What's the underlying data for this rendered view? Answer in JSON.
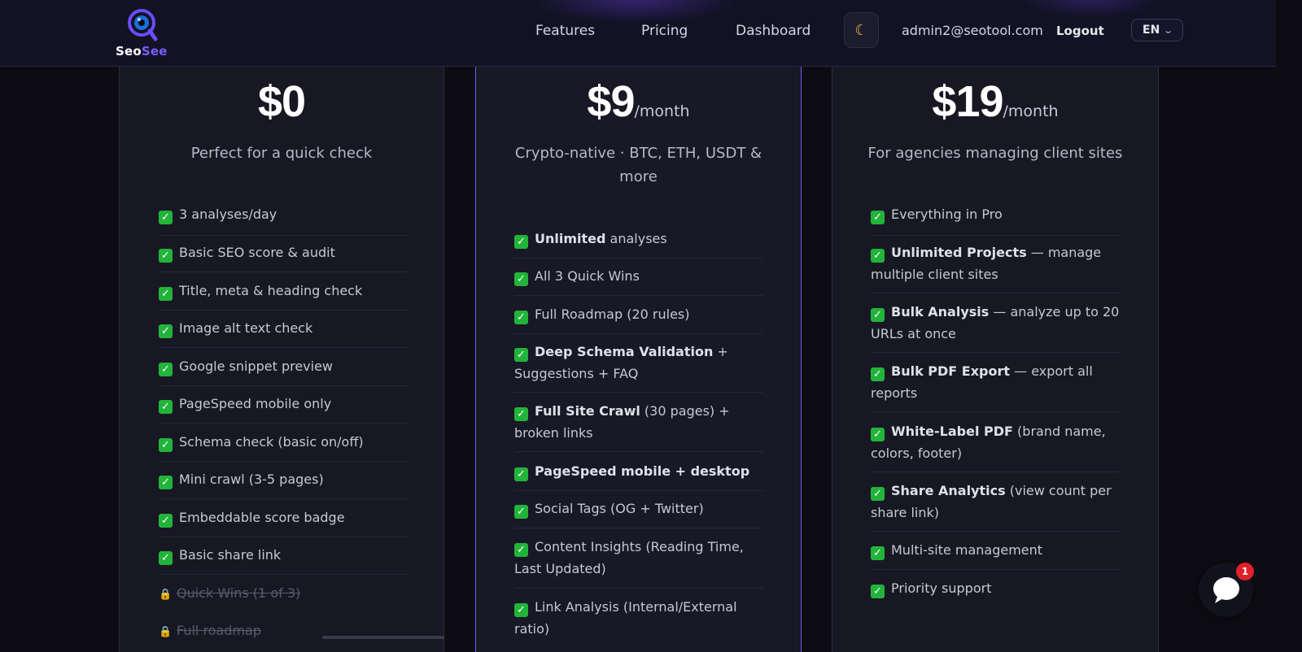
{
  "nav": {
    "logo_text_a": "Seo",
    "logo_text_b": "See",
    "links": [
      "Features",
      "Pricing",
      "Dashboard"
    ],
    "theme_icon": "moon-icon",
    "email": "admin2@seotool.com",
    "logout": "Logout",
    "lang": "EN"
  },
  "plans": [
    {
      "price": "$0",
      "period": "",
      "description": "Perfect for a quick check",
      "features": [
        {
          "bold": "",
          "text": "3 analyses/day"
        },
        {
          "bold": "",
          "text": "Basic SEO score & audit"
        },
        {
          "bold": "",
          "text": "Title, meta & heading check"
        },
        {
          "bold": "",
          "text": "Image alt text check"
        },
        {
          "bold": "",
          "text": "Google snippet preview"
        },
        {
          "bold": "",
          "text": "PageSpeed mobile only"
        },
        {
          "bold": "",
          "text": "Schema check (basic on/off)"
        },
        {
          "bold": "",
          "text": "Mini crawl (3-5 pages)"
        },
        {
          "bold": "",
          "text": "Embeddable score badge"
        },
        {
          "bold": "",
          "text": "Basic share link"
        }
      ],
      "locked": [
        "Quick Wins (1 of 3)",
        "Full roadmap"
      ]
    },
    {
      "price": "$9",
      "period": "/month",
      "description": "Crypto-native · BTC, ETH, USDT & more",
      "features": [
        {
          "bold": "Unlimited",
          "text": " analyses"
        },
        {
          "bold": "",
          "text": "All 3 Quick Wins"
        },
        {
          "bold": "",
          "text": "Full Roadmap (20 rules)"
        },
        {
          "bold": "Deep Schema Validation",
          "text": " + Suggestions + FAQ"
        },
        {
          "bold": "Full Site Crawl",
          "text": " (30 pages) + broken links"
        },
        {
          "bold": "PageSpeed mobile + desktop",
          "text": ""
        },
        {
          "bold": "",
          "text": "Social Tags (OG + Twitter)"
        },
        {
          "bold": "",
          "text": "Content Insights (Reading Time, Last Updated)"
        },
        {
          "bold": "",
          "text": "Link Analysis (Internal/External ratio)"
        }
      ]
    },
    {
      "price": "$19",
      "period": "/month",
      "description": "For agencies managing client sites",
      "features": [
        {
          "bold": "",
          "text": "Everything in Pro"
        },
        {
          "bold": "Unlimited Projects",
          "text": " — manage multiple client sites"
        },
        {
          "bold": "Bulk Analysis",
          "text": " — analyze up to 20 URLs at once"
        },
        {
          "bold": "Bulk PDF Export",
          "text": " — export all reports"
        },
        {
          "bold": "White-Label PDF",
          "text": " (brand name, colors, footer)"
        },
        {
          "bold": "Share Analytics",
          "text": " (view count per share link)"
        },
        {
          "bold": "",
          "text": "Multi-site management"
        },
        {
          "bold": "",
          "text": "Priority support"
        }
      ]
    }
  ],
  "chat": {
    "badge": "1"
  }
}
